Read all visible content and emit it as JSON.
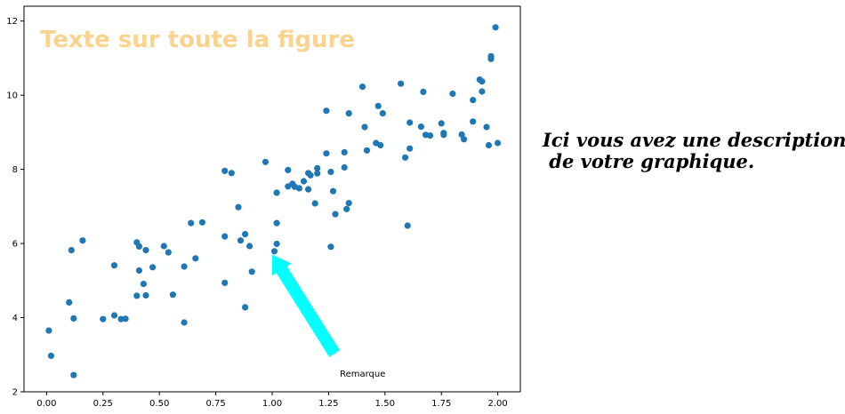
{
  "chart_data": {
    "type": "scatter",
    "title": "",
    "xlabel": "",
    "ylabel": "",
    "xlim": [
      -0.1,
      2.1
    ],
    "ylim": [
      2.0,
      12.4
    ],
    "xticks": [
      "0.00",
      "0.25",
      "0.50",
      "0.75",
      "1.00",
      "1.25",
      "1.50",
      "1.75",
      "2.00"
    ],
    "yticks": [
      "2",
      "4",
      "6",
      "8",
      "10",
      "12"
    ],
    "grid": false,
    "legend": "none",
    "series": [
      {
        "color": "#1f77b4",
        "points": [
          [
            0.01,
            3.65
          ],
          [
            0.02,
            2.97
          ],
          [
            0.1,
            4.41
          ],
          [
            0.11,
            5.82
          ],
          [
            0.12,
            3.98
          ],
          [
            0.12,
            2.45
          ],
          [
            0.16,
            6.08
          ],
          [
            0.25,
            3.96
          ],
          [
            0.3,
            4.06
          ],
          [
            0.3,
            5.41
          ],
          [
            0.33,
            3.96
          ],
          [
            0.35,
            3.97
          ],
          [
            0.4,
            6.03
          ],
          [
            0.4,
            4.59
          ],
          [
            0.41,
            5.92
          ],
          [
            0.41,
            5.27
          ],
          [
            0.43,
            4.91
          ],
          [
            0.44,
            5.82
          ],
          [
            0.44,
            4.6
          ],
          [
            0.47,
            5.36
          ],
          [
            0.52,
            5.93
          ],
          [
            0.54,
            5.76
          ],
          [
            0.56,
            4.62
          ],
          [
            0.61,
            5.38
          ],
          [
            0.61,
            3.87
          ],
          [
            0.64,
            6.55
          ],
          [
            0.66,
            5.6
          ],
          [
            0.69,
            6.57
          ],
          [
            0.79,
            7.96
          ],
          [
            0.79,
            6.19
          ],
          [
            0.79,
            4.94
          ],
          [
            0.82,
            7.9
          ],
          [
            0.85,
            6.98
          ],
          [
            0.86,
            6.08
          ],
          [
            0.88,
            6.25
          ],
          [
            0.88,
            4.28
          ],
          [
            0.9,
            5.93
          ],
          [
            0.91,
            5.24
          ],
          [
            0.97,
            8.2
          ],
          [
            1.01,
            5.79
          ],
          [
            1.02,
            5.99
          ],
          [
            1.02,
            6.55
          ],
          [
            1.02,
            7.37
          ],
          [
            1.07,
            7.98
          ],
          [
            1.07,
            7.54
          ],
          [
            1.09,
            7.61
          ],
          [
            1.1,
            7.53
          ],
          [
            1.12,
            7.49
          ],
          [
            1.14,
            7.68
          ],
          [
            1.16,
            7.9
          ],
          [
            1.16,
            7.46
          ],
          [
            1.17,
            7.84
          ],
          [
            1.19,
            7.08
          ],
          [
            1.2,
            8.03
          ],
          [
            1.2,
            7.89
          ],
          [
            1.24,
            9.58
          ],
          [
            1.24,
            8.43
          ],
          [
            1.26,
            7.93
          ],
          [
            1.26,
            5.91
          ],
          [
            1.27,
            7.41
          ],
          [
            1.28,
            6.79
          ],
          [
            1.32,
            8.46
          ],
          [
            1.32,
            8.05
          ],
          [
            1.33,
            6.93
          ],
          [
            1.34,
            9.51
          ],
          [
            1.34,
            7.09
          ],
          [
            1.4,
            10.23
          ],
          [
            1.41,
            9.14
          ],
          [
            1.42,
            8.51
          ],
          [
            1.46,
            8.71
          ],
          [
            1.47,
            9.71
          ],
          [
            1.48,
            8.65
          ],
          [
            1.49,
            9.51
          ],
          [
            1.57,
            10.31
          ],
          [
            1.59,
            8.32
          ],
          [
            1.6,
            6.48
          ],
          [
            1.61,
            9.26
          ],
          [
            1.61,
            8.56
          ],
          [
            1.66,
            9.15
          ],
          [
            1.67,
            10.09
          ],
          [
            1.68,
            8.93
          ],
          [
            1.7,
            8.91
          ],
          [
            1.75,
            9.24
          ],
          [
            1.76,
            8.98
          ],
          [
            1.76,
            8.93
          ],
          [
            1.8,
            10.04
          ],
          [
            1.84,
            8.94
          ],
          [
            1.85,
            8.81
          ],
          [
            1.89,
            9.87
          ],
          [
            1.89,
            9.29
          ],
          [
            1.92,
            10.42
          ],
          [
            1.93,
            10.37
          ],
          [
            1.93,
            10.1
          ],
          [
            1.95,
            9.14
          ],
          [
            1.96,
            8.65
          ],
          [
            1.97,
            10.98
          ],
          [
            1.97,
            11.05
          ],
          [
            1.99,
            11.83
          ],
          [
            2.0,
            8.71
          ]
        ]
      }
    ],
    "annotation": {
      "text": "Remarque",
      "text_xy": [
        1.3,
        2.5
      ],
      "arrow_tip_xy": [
        1.0,
        5.7
      ],
      "arrow_color": "#00ffff"
    }
  },
  "figure_text": {
    "text": "Texte sur toute la figure",
    "color": "#fbd38d"
  },
  "side_description": {
    "text": "Ici vous avez une description\n de votre graphique."
  }
}
